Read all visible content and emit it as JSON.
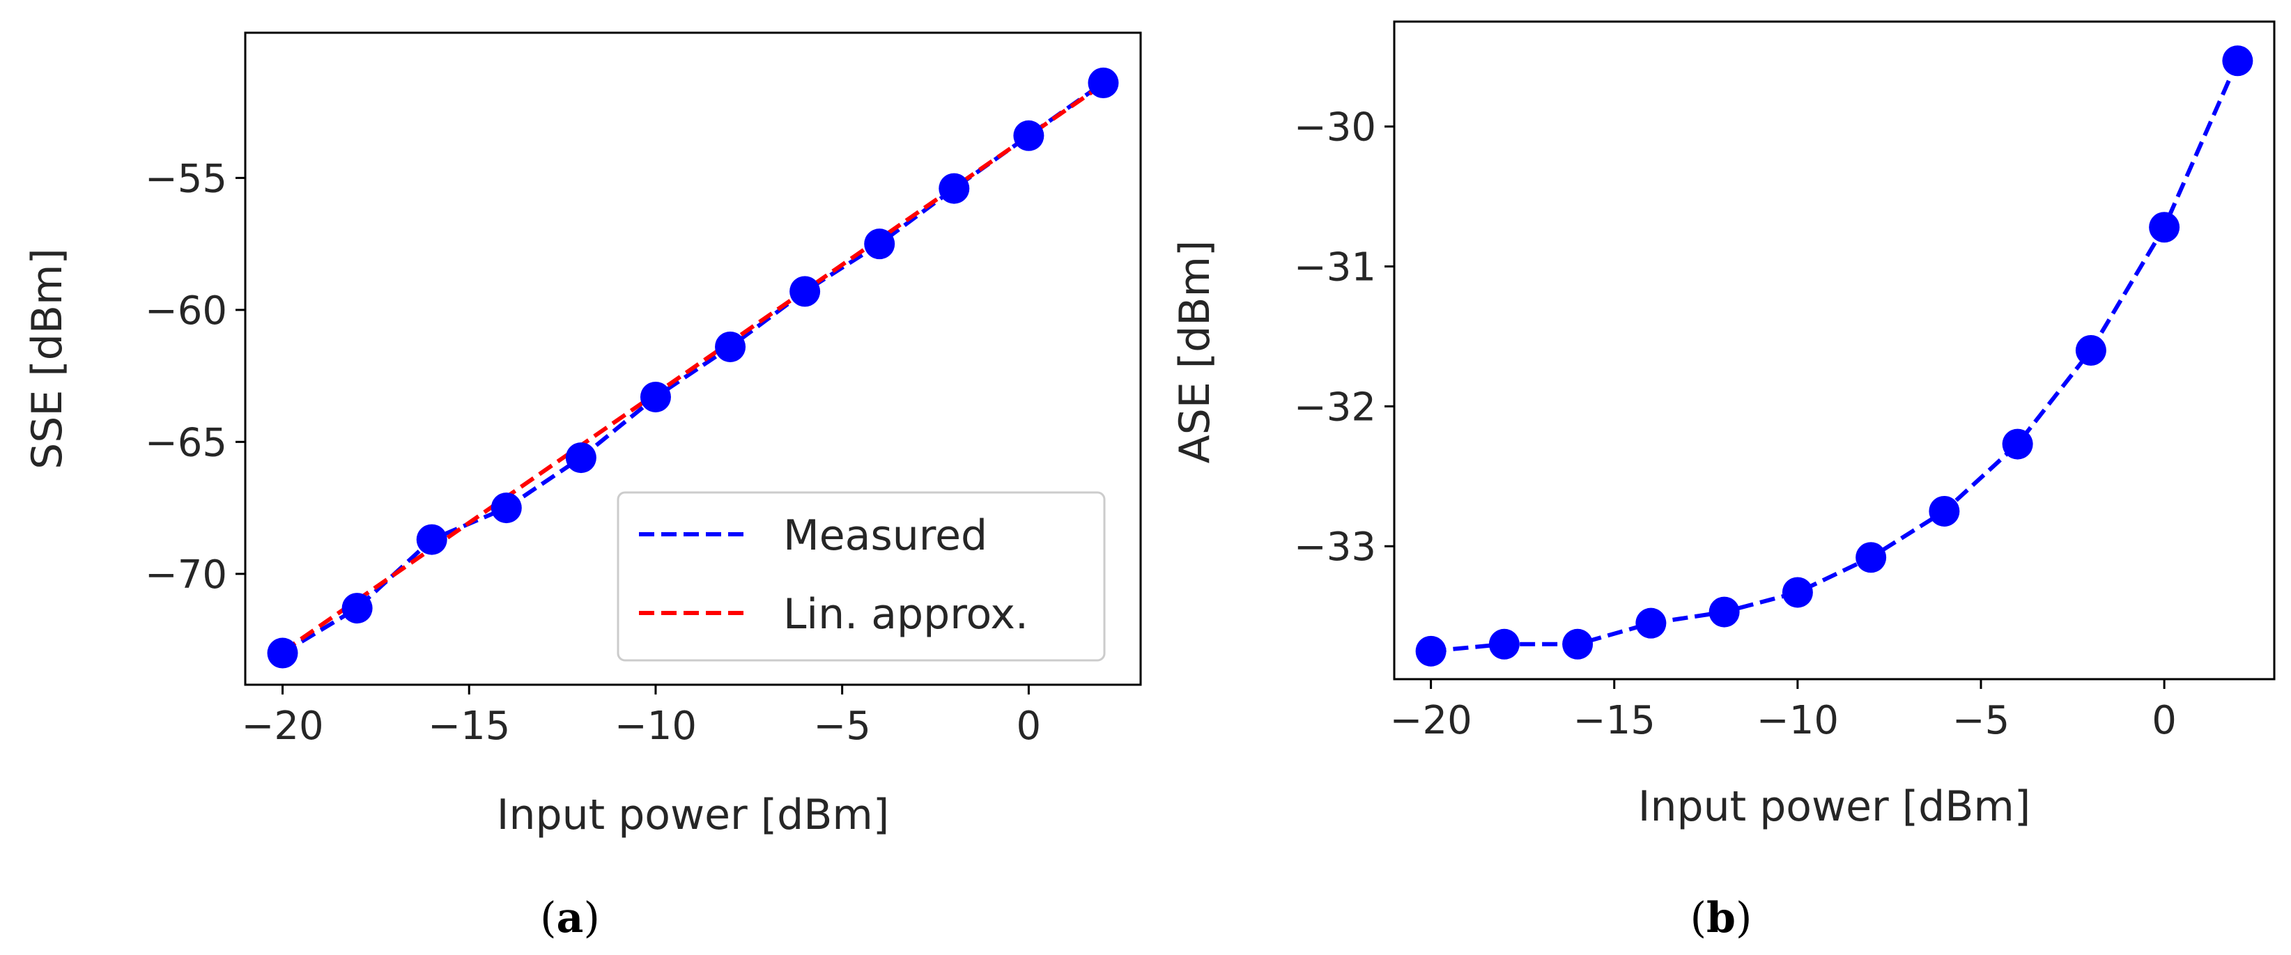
{
  "colors": {
    "measured": "#0000ff",
    "linear": "#ff0000",
    "axis": "#000000",
    "text": "#262626"
  },
  "captions": {
    "a_open": "(",
    "a_letter": "a",
    "a_close": ")",
    "b_open": "(",
    "b_letter": "b",
    "b_close": ")"
  },
  "chart_data": [
    {
      "type": "line",
      "id": "a",
      "xlabel": "Input power [dBm]",
      "ylabel": "SSE [dBm]",
      "xlim": [
        -21,
        3
      ],
      "ylim": [
        -74.2,
        -49.5
      ],
      "xticks": [
        -20,
        -15,
        -10,
        -5,
        0
      ],
      "xtick_labels": [
        "−20",
        "−15",
        "−10",
        "−5",
        "0"
      ],
      "yticks": [
        -55,
        -60,
        -65,
        -70
      ],
      "ytick_labels": [
        "−55",
        "−60",
        "−65",
        "−70"
      ],
      "legend_position": "lower-right",
      "series": [
        {
          "name": "Measured",
          "style": "dashed-markers",
          "color": "#0000ff",
          "x": [
            -20,
            -18,
            -16,
            -14,
            -12,
            -10,
            -8,
            -6,
            -4,
            -2,
            0,
            2
          ],
          "y": [
            -73.0,
            -71.3,
            -68.7,
            -67.5,
            -65.6,
            -63.3,
            -61.4,
            -59.3,
            -57.5,
            -55.4,
            -53.4,
            -51.4
          ]
        },
        {
          "name": "Lin. approx.",
          "style": "dashed",
          "color": "#ff0000",
          "x": [
            -20,
            2
          ],
          "y": [
            -72.95,
            -51.45
          ]
        }
      ]
    },
    {
      "type": "line",
      "id": "b",
      "xlabel": "Input power [dBm]",
      "ylabel": "ASE [dBm]",
      "xlim": [
        -21,
        3
      ],
      "ylim": [
        -33.95,
        -29.25
      ],
      "xticks": [
        -20,
        -15,
        -10,
        -5,
        0
      ],
      "xtick_labels": [
        "−20",
        "−15",
        "−10",
        "−5",
        "0"
      ],
      "yticks": [
        -30,
        -31,
        -32,
        -33
      ],
      "ytick_labels": [
        "−30",
        "−31",
        "−32",
        "−33"
      ],
      "series": [
        {
          "name": "Measured",
          "style": "dashed-markers",
          "color": "#0000ff",
          "x": [
            -20,
            -18,
            -16,
            -14,
            -12,
            -10,
            -8,
            -6,
            -4,
            -2,
            0,
            2
          ],
          "y": [
            -33.75,
            -33.7,
            -33.7,
            -33.55,
            -33.47,
            -33.33,
            -33.08,
            -32.75,
            -32.27,
            -31.6,
            -30.72,
            -29.53
          ]
        }
      ]
    }
  ]
}
